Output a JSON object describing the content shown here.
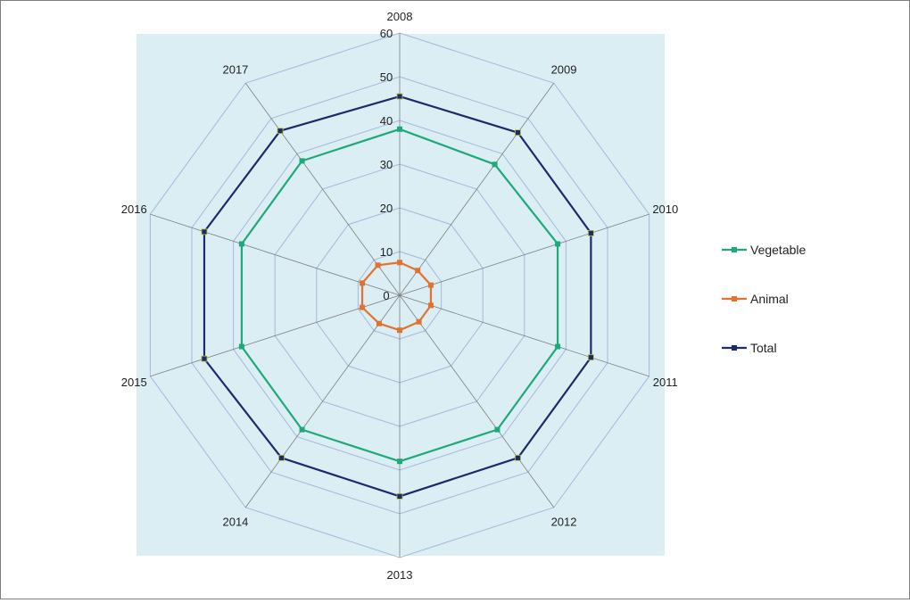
{
  "chart_data": {
    "type": "radar",
    "categories": [
      "2008",
      "2009",
      "2010",
      "2011",
      "2012",
      "2013",
      "2014",
      "2015",
      "2016",
      "2017"
    ],
    "rticks": [
      0,
      10,
      20,
      30,
      40,
      50,
      60
    ],
    "rlim": [
      0,
      60
    ],
    "series": [
      {
        "name": "Vegetable",
        "values": [
          38,
          37,
          38,
          38,
          38,
          38,
          38,
          38,
          38,
          38
        ]
      },
      {
        "name": "Animal",
        "values": [
          7.5,
          7,
          7.5,
          7.5,
          7.5,
          8,
          8,
          9,
          9,
          8.5
        ]
      },
      {
        "name": "Total",
        "values": [
          45.5,
          46,
          46,
          46,
          46,
          46,
          46,
          47,
          47,
          46.5
        ]
      }
    ],
    "legend_position": "right",
    "grid": true
  },
  "colors": {
    "plot_background": "#daeef3",
    "grid": "#a6b8de",
    "spokes": "#7f7f7f",
    "Vegetable": "#1fa87a",
    "Animal": "#e2722f",
    "Total": "#1f2a6b"
  }
}
